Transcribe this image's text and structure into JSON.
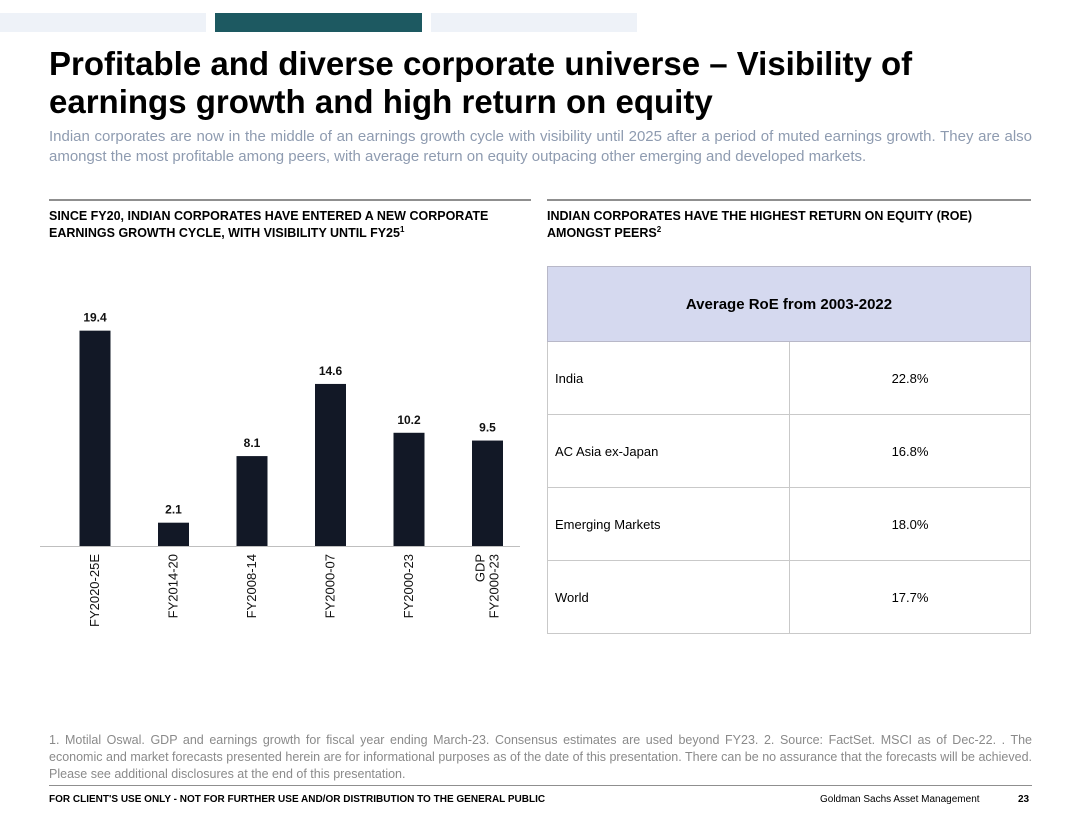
{
  "header": {
    "title": "Profitable and diverse corporate universe – Visibility of earnings growth and high return on equity",
    "subtitle": "Indian corporates are now in the middle of an earnings growth cycle with visibility until 2025 after a period of muted earnings growth. They are also amongst the most profitable among peers, with average return on equity outpacing other emerging and developed markets."
  },
  "left_section": {
    "heading": "SINCE FY20, INDIAN CORPORATES HAVE ENTERED A NEW CORPORATE EARNINGS GROWTH CYCLE, WITH VISIBILITY UNTIL FY25",
    "heading_sup": "1"
  },
  "right_section": {
    "heading": "INDIAN CORPORATES HAVE THE HIGHEST RETURN ON EQUITY (ROE) AMONGST PEERS",
    "heading_sup": "2"
  },
  "chart_data": {
    "type": "bar",
    "categories": [
      "FY2020-25E",
      "FY2014-20",
      "FY2008-14",
      "FY2000-07",
      "FY2000-23",
      "GDP FY2000-23"
    ],
    "values": [
      19.4,
      2.1,
      8.1,
      14.6,
      10.2,
      9.5
    ],
    "value_labels": [
      "19.4",
      "2.1",
      "8.1",
      "14.6",
      "10.2",
      "9.5"
    ],
    "bar_color": "#121826",
    "ylim": [
      0,
      20
    ],
    "grid": false,
    "data_labels": true
  },
  "roe_table": {
    "header": "Average RoE from 2003-2022",
    "rows": [
      {
        "name": "India",
        "value": "22.8%"
      },
      {
        "name": "AC Asia ex-Japan",
        "value": "16.8%"
      },
      {
        "name": "Emerging Markets",
        "value": "18.0%"
      },
      {
        "name": "World",
        "value": "17.7%"
      }
    ],
    "header_color": "#d5d9ef"
  },
  "footnote": "1. Motilal Oswal. GDP and earnings growth for fiscal year ending March-23. Consensus estimates are used beyond FY23. 2. Source: FactSet. MSCI as of Dec-22. . The economic and market forecasts presented herein are for informational purposes as of the date of this presentation. There can be no assurance that the forecasts will be achieved. Please see additional disclosures at the end of this presentation.",
  "footer": {
    "disclaimer": "FOR CLIENT'S USE ONLY - NOT FOR FURTHER USE AND/OR DISTRIBUTION TO THE GENERAL PUBLIC",
    "brand": "Goldman Sachs Asset Management",
    "page": "23"
  },
  "colors": {
    "accent_bar": "#1d5961",
    "light_bar": "#eef2f8",
    "subtitle": "#8e9bb0"
  }
}
